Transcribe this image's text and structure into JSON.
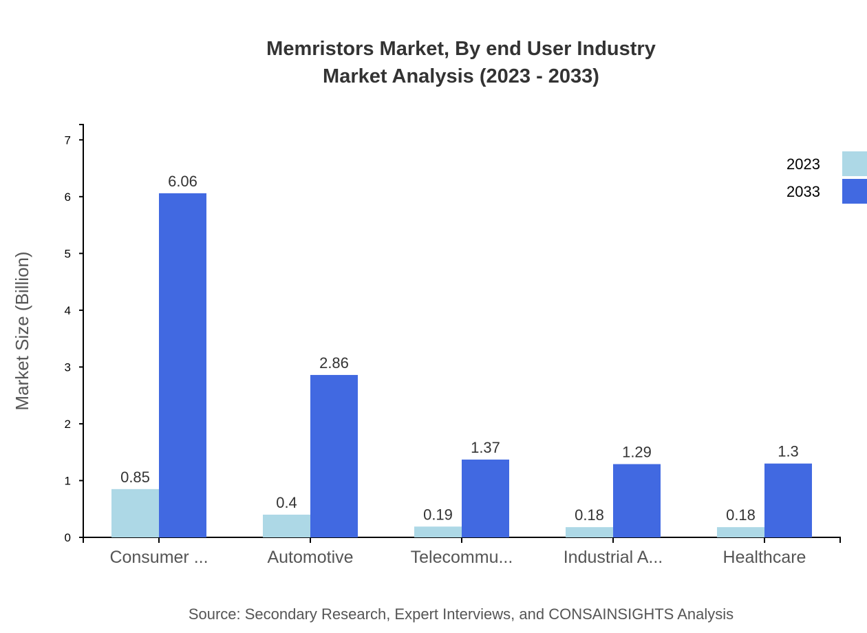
{
  "chart_data": {
    "type": "bar",
    "title": "Memristors Market, By end User Industry",
    "subtitle": "Market Analysis (2023 - 2033)",
    "xlabel": "",
    "ylabel": "Market Size (Billion)",
    "categories": [
      "Consumer ...",
      "Automotive",
      "Telecommu...",
      "Industrial A...",
      "Healthcare"
    ],
    "series": [
      {
        "name": "2023",
        "color": "#add8e6",
        "values": [
          0.85,
          0.4,
          0.19,
          0.18,
          0.18
        ]
      },
      {
        "name": "2033",
        "color": "#4169e1",
        "values": [
          6.06,
          2.86,
          1.37,
          1.29,
          1.3
        ]
      }
    ],
    "ylim": [
      0,
      7.27
    ],
    "yticks": [
      0,
      1,
      2,
      3,
      4,
      5,
      6,
      7
    ],
    "grid": false,
    "legend": "top-right",
    "source": "Source: Secondary Research, Expert Interviews, and CONSAINSIGHTS Analysis"
  }
}
